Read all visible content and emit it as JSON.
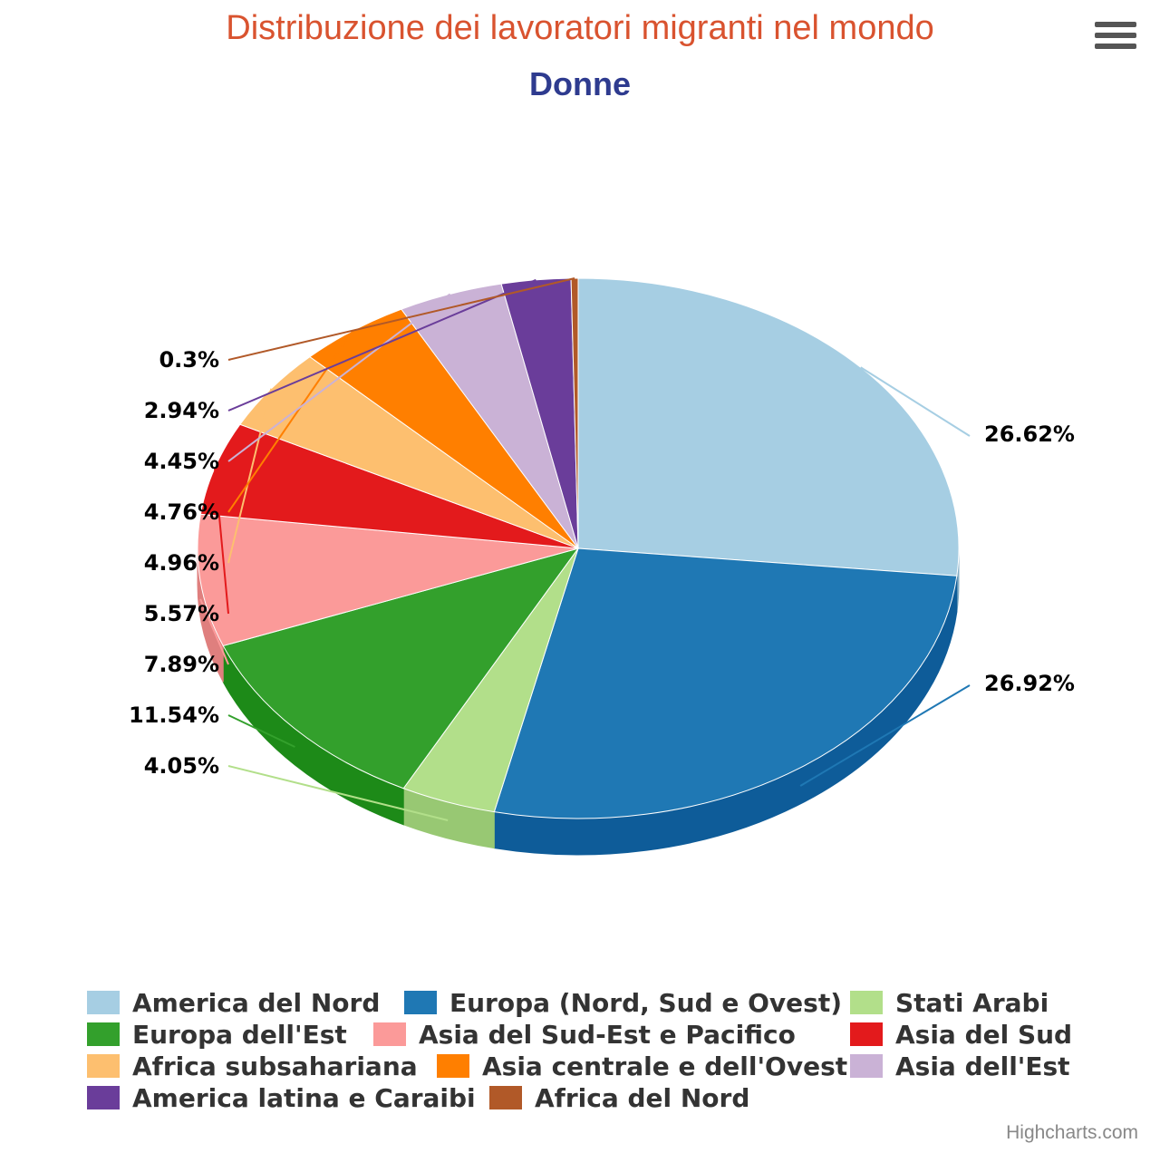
{
  "colors": {
    "title": "#d9532f",
    "subtitle": "#2e3b8f",
    "label": "#000000"
  },
  "credits": "Highcharts.com",
  "menu_icon": "hamburger-menu-icon",
  "chart_data": {
    "type": "pie",
    "title": "Distribuzione dei lavoratori migranti nel mondo",
    "subtitle": "Donne",
    "legend_position": "bottom",
    "slices": [
      {
        "name": "America del Nord",
        "value": 26.62,
        "label": "26.62%",
        "color": "#a6cee3",
        "side": "#86aec4"
      },
      {
        "name": "Europa (Nord, Sud e Ovest)",
        "value": 26.92,
        "label": "26.92%",
        "color": "#1f78b4",
        "side": "#0e5c99"
      },
      {
        "name": "Stati Arabi",
        "value": 4.05,
        "label": "4.05%",
        "color": "#b2df8a",
        "side": "#98c873"
      },
      {
        "name": "Europa dell'Est",
        "value": 11.54,
        "label": "11.54%",
        "color": "#33a02c",
        "side": "#1d8a18"
      },
      {
        "name": "Asia del Sud-Est e Pacifico",
        "value": 7.89,
        "label": "7.89%",
        "color": "#fb9a99",
        "side": "#df7f7e"
      },
      {
        "name": "Asia del Sud",
        "value": 5.57,
        "label": "5.57%",
        "color": "#e31a1c",
        "side": "#c20f12"
      },
      {
        "name": "Africa subsahariana",
        "value": 4.96,
        "label": "4.96%",
        "color": "#fdbf6f",
        "side": "#e0a352"
      },
      {
        "name": "Asia centrale e dell'Ovest",
        "value": 4.76,
        "label": "4.76%",
        "color": "#ff7f00",
        "side": "#dc6a00"
      },
      {
        "name": "Asia dell'Est",
        "value": 4.45,
        "label": "4.45%",
        "color": "#cab2d6",
        "side": "#ad95ba"
      },
      {
        "name": "America latina e Caraibi",
        "value": 2.94,
        "label": "2.94%",
        "color": "#6a3d9a",
        "side": "#53287f"
      },
      {
        "name": "Africa del Nord",
        "value": 0.3,
        "label": "0.3%",
        "color": "#b15928",
        "side": "#92441a"
      }
    ]
  }
}
